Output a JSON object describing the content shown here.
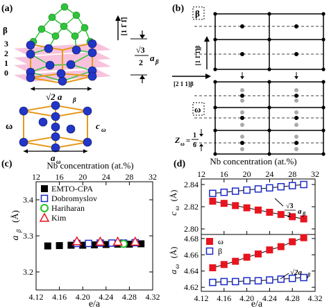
{
  "panels": {
    "a": {
      "label": "(a)",
      "phase_beta": "β",
      "phase_omega": "ω",
      "layer_labels": [
        "3",
        "2",
        "1",
        "0"
      ],
      "direction": "[1 1̄ 1̄]",
      "height_label_top": "√3",
      "height_label_bottom": "2",
      "height_symbol": "a",
      "width_label": "√2 a",
      "omega_c_label": "c",
      "omega_a_label": "a"
    },
    "b": {
      "label": "(b)",
      "box_beta": "β",
      "box_omega": "ω",
      "dir_vertical": "[1 1̄ 1̄]β",
      "dir_horizontal": "[2 1 1]β",
      "z_label_prefix": "Z",
      "z_num": "1",
      "z_den": "6"
    },
    "c": {
      "label": "(c)",
      "top_axis_label": "Nb concentration (at.%)",
      "top_ticks": [
        "12",
        "16",
        "20",
        "24",
        "28",
        "32"
      ],
      "x_ticks": [
        "4.12",
        "4.16",
        "4.20",
        "4.24",
        "4.28",
        "4.32"
      ],
      "y_ticks": [
        "3.2",
        "3.3",
        "3.4"
      ],
      "ylabel_main": "a",
      "ylabel_sub": "β",
      "ylabel_unit": "(Å)",
      "xlabel": "e/a",
      "legend": [
        "EMTO-CPA",
        "Dobromyslov",
        "Hariharan",
        "Kim"
      ]
    },
    "d": {
      "label": "(d)",
      "top_axis_label": "Nb concentration (at.%)",
      "top_ticks": [
        "12",
        "16",
        "20",
        "24",
        "28",
        "32"
      ],
      "x_ticks": [
        "4.12",
        "4.16",
        "4.20",
        "4.24",
        "4.28",
        "4.32"
      ],
      "upper_y_ticks": [
        "2.80",
        "2.82",
        "2.84"
      ],
      "lower_y_ticks": [
        "4.62",
        "4.64",
        "4.66",
        "4.68"
      ],
      "upper_ylabel": "c",
      "upper_ylabel_sub": "ω",
      "upper_ylabel_unit": "(Å)",
      "lower_ylabel": "a",
      "lower_ylabel_sub": "ω",
      "lower_ylabel_unit": "(Å)",
      "xlabel": "e/a",
      "upper_annot_num": "√3",
      "upper_annot_den": "2",
      "upper_annot_sym": "a",
      "lower_annot": "√2a",
      "legend": [
        "ω",
        "β"
      ]
    }
  },
  "colors": {
    "red": "#e8141e",
    "blue": "#1a28c8",
    "green": "#22c322",
    "black": "#000000",
    "atom_blue": "#2236c8",
    "atom_green": "#2fc43a",
    "bond_orange": "#e69a1a",
    "plane_pink": "#f7b7d6",
    "gray_dot": "#a9a9a9"
  },
  "chart_data": [
    {
      "type": "scatter",
      "panel": "c",
      "title": "",
      "xlabel": "e/a",
      "ylabel": "aβ (Å)",
      "xlim": [
        4.12,
        4.32
      ],
      "ylim": [
        3.15,
        3.45
      ],
      "series": [
        {
          "name": "EMTO-CPA",
          "marker": "filled-square",
          "color": "#000000",
          "x": [
            4.14,
            4.16,
            4.18,
            4.2,
            4.22,
            4.24,
            4.26,
            4.28,
            4.3
          ],
          "y": [
            3.272,
            3.273,
            3.274,
            3.274,
            3.275,
            3.276,
            3.277,
            3.277,
            3.278
          ]
        },
        {
          "name": "Dobromyslov",
          "marker": "open-square",
          "color": "#1a28c8",
          "x": [
            4.19,
            4.21,
            4.23,
            4.25,
            4.27,
            4.29
          ],
          "y": [
            3.279,
            3.279,
            3.28,
            3.28,
            3.28,
            3.281
          ]
        },
        {
          "name": "Hariharan",
          "marker": "open-circle",
          "color": "#22c322",
          "x": [
            4.27
          ],
          "y": [
            3.278
          ]
        },
        {
          "name": "Kim",
          "marker": "open-triangle",
          "color": "#e8141e",
          "x": [
            4.19,
            4.23,
            4.26,
            4.29
          ],
          "y": [
            3.285,
            3.284,
            3.284,
            3.284
          ]
        }
      ]
    },
    {
      "type": "line",
      "panel": "d-upper",
      "title": "",
      "xlabel": "e/a",
      "ylabel": "cω (Å)",
      "xlim": [
        4.12,
        4.32
      ],
      "ylim": [
        2.795,
        2.845
      ],
      "series": [
        {
          "name": "",
          "marker": "open-square",
          "color": "#1a28c8",
          "x": [
            4.14,
            4.16,
            4.18,
            4.2,
            4.22,
            4.24,
            4.26,
            4.28,
            4.3
          ],
          "y": [
            2.832,
            2.833,
            2.834,
            2.835,
            2.836,
            2.837,
            2.838,
            2.839,
            2.84
          ]
        },
        {
          "name": "",
          "marker": "filled-square",
          "color": "#e8141e",
          "x": [
            4.14,
            4.16,
            4.18,
            4.2,
            4.22,
            4.24,
            4.26,
            4.28,
            4.3
          ],
          "y": [
            2.825,
            2.823,
            2.821,
            2.819,
            2.817,
            2.815,
            2.813,
            2.811,
            2.809
          ]
        }
      ]
    },
    {
      "type": "line",
      "panel": "d-lower",
      "title": "",
      "xlabel": "e/a",
      "ylabel": "aω (Å)",
      "xlim": [
        4.12,
        4.32
      ],
      "ylim": [
        4.615,
        4.685
      ],
      "series": [
        {
          "name": "ω",
          "marker": "filled-square",
          "color": "#e8141e",
          "x": [
            4.14,
            4.16,
            4.18,
            4.2,
            4.22,
            4.24,
            4.26,
            4.28,
            4.3
          ],
          "y": [
            4.644,
            4.648,
            4.652,
            4.657,
            4.661,
            4.666,
            4.67,
            4.676,
            4.681
          ]
        },
        {
          "name": "β",
          "marker": "open-square",
          "color": "#1a28c8",
          "x": [
            4.14,
            4.16,
            4.18,
            4.2,
            4.22,
            4.24,
            4.26,
            4.28,
            4.3
          ],
          "y": [
            4.626,
            4.627,
            4.627,
            4.628,
            4.628,
            4.629,
            4.63,
            4.631,
            4.632
          ]
        }
      ]
    }
  ]
}
